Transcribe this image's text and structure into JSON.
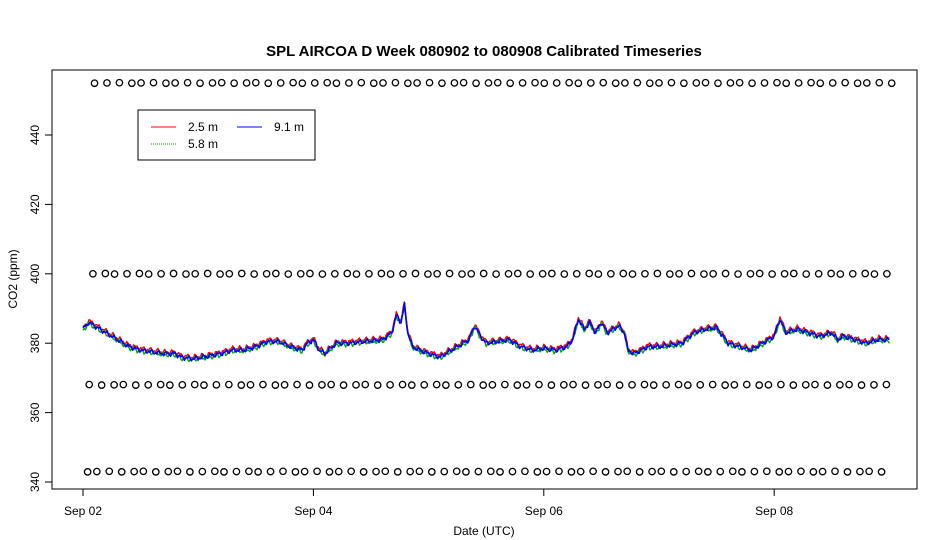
{
  "chart_data": {
    "type": "line",
    "title": "SPL AIRCOA D  Week 080902 to 080908  Calibrated Timeseries",
    "xlabel": "Date (UTC)",
    "ylabel": "CO2 (ppm)",
    "x_ticks": [
      "Sep 02",
      "Sep 04",
      "Sep 06",
      "Sep 08"
    ],
    "x_tick_days": [
      0,
      2,
      4,
      6
    ],
    "xlim": [
      -0.2,
      7.2
    ],
    "y_ticks": [
      340,
      360,
      380,
      400,
      420,
      440
    ],
    "ylim": [
      338,
      458
    ],
    "grid": false,
    "legend_position": "top-left",
    "series": [
      {
        "name": "2.5 m",
        "color": "#ff0000"
      },
      {
        "name": "5.8 m",
        "color": "#00aa00"
      },
      {
        "name": "9.1 m",
        "color": "#0000ff"
      }
    ],
    "line_profile": [
      [
        0.0,
        384
      ],
      [
        0.05,
        386
      ],
      [
        0.1,
        385
      ],
      [
        0.2,
        383
      ],
      [
        0.3,
        381
      ],
      [
        0.4,
        379
      ],
      [
        0.5,
        378
      ],
      [
        0.6,
        377.5
      ],
      [
        0.7,
        377
      ],
      [
        0.8,
        377
      ],
      [
        0.85,
        376
      ],
      [
        0.95,
        375.5
      ],
      [
        1.05,
        376
      ],
      [
        1.2,
        377
      ],
      [
        1.3,
        378
      ],
      [
        1.4,
        378
      ],
      [
        1.5,
        379
      ],
      [
        1.6,
        380.5
      ],
      [
        1.7,
        380.5
      ],
      [
        1.8,
        379
      ],
      [
        1.9,
        378
      ],
      [
        1.95,
        380
      ],
      [
        2.0,
        381
      ],
      [
        2.05,
        378
      ],
      [
        2.1,
        377
      ],
      [
        2.2,
        380
      ],
      [
        2.3,
        380
      ],
      [
        2.45,
        380.5
      ],
      [
        2.6,
        381
      ],
      [
        2.68,
        383
      ],
      [
        2.72,
        388
      ],
      [
        2.76,
        386
      ],
      [
        2.79,
        391
      ],
      [
        2.82,
        383
      ],
      [
        2.86,
        379
      ],
      [
        2.92,
        378
      ],
      [
        3.0,
        377
      ],
      [
        3.1,
        376
      ],
      [
        3.2,
        378
      ],
      [
        3.3,
        380
      ],
      [
        3.35,
        381
      ],
      [
        3.4,
        385
      ],
      [
        3.45,
        382
      ],
      [
        3.5,
        380
      ],
      [
        3.6,
        380.5
      ],
      [
        3.7,
        381
      ],
      [
        3.8,
        379
      ],
      [
        3.9,
        378
      ],
      [
        4.0,
        378.5
      ],
      [
        4.1,
        378
      ],
      [
        4.2,
        379
      ],
      [
        4.25,
        381
      ],
      [
        4.3,
        387
      ],
      [
        4.35,
        384
      ],
      [
        4.4,
        386
      ],
      [
        4.45,
        383
      ],
      [
        4.5,
        386
      ],
      [
        4.55,
        383
      ],
      [
        4.6,
        384
      ],
      [
        4.65,
        385
      ],
      [
        4.7,
        383
      ],
      [
        4.73,
        378
      ],
      [
        4.78,
        377
      ],
      [
        4.85,
        378
      ],
      [
        4.9,
        379
      ],
      [
        5.0,
        379
      ],
      [
        5.1,
        379.5
      ],
      [
        5.2,
        380
      ],
      [
        5.3,
        383
      ],
      [
        5.4,
        384
      ],
      [
        5.5,
        384.5
      ],
      [
        5.6,
        380
      ],
      [
        5.7,
        379
      ],
      [
        5.8,
        378
      ],
      [
        5.9,
        380
      ],
      [
        6.0,
        382
      ],
      [
        6.05,
        387
      ],
      [
        6.1,
        383
      ],
      [
        6.2,
        384
      ],
      [
        6.3,
        383
      ],
      [
        6.4,
        382
      ],
      [
        6.5,
        383
      ],
      [
        6.55,
        381
      ],
      [
        6.6,
        382
      ],
      [
        6.7,
        381
      ],
      [
        6.8,
        380
      ],
      [
        6.9,
        381
      ],
      [
        7.0,
        381
      ]
    ],
    "calibration_levels": [
      455,
      400,
      368,
      343
    ],
    "calibration_marker": "open circle"
  }
}
